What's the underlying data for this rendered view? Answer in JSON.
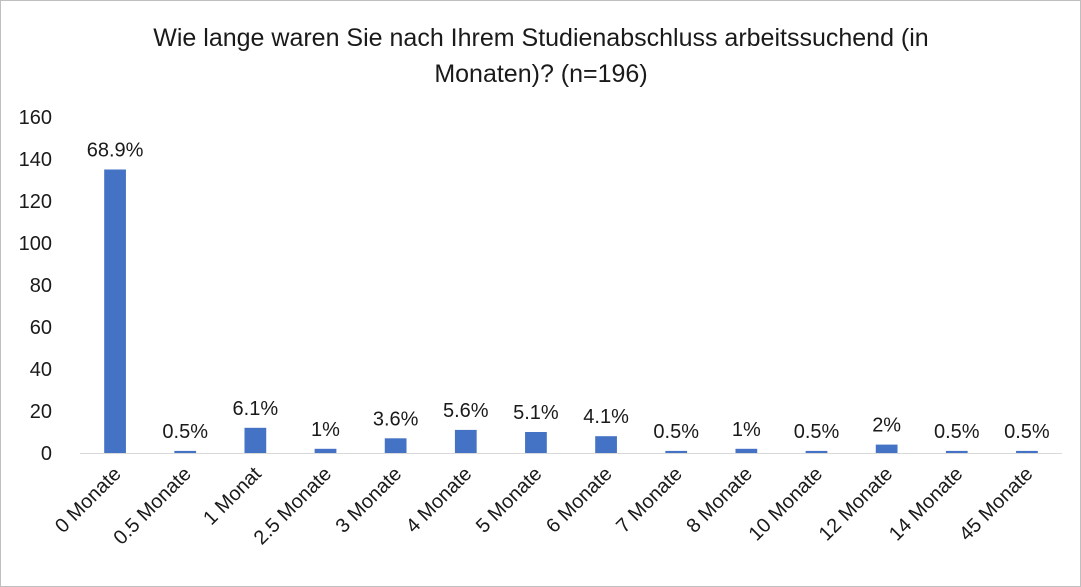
{
  "chart_data": {
    "type": "bar",
    "title_lines": [
      "Wie lange waren Sie nach Ihrem Studienabschluss arbeitssuchend (in",
      "Monaten)? (n=196)"
    ],
    "categories": [
      "0 Monate",
      "0.5 Monate",
      "1 Monat",
      "2.5 Monate",
      "3 Monate",
      "4 Monate",
      "5 Monate",
      "6 Monate",
      "7 Monate",
      "8 Monate",
      "10 Monate",
      "12 Monate",
      "14 Monate",
      "45 Monate"
    ],
    "values": [
      135,
      1,
      12,
      2,
      7,
      11,
      10,
      8,
      1,
      2,
      1,
      4,
      1,
      1
    ],
    "data_labels": [
      "68.9%",
      "0.5%",
      "6.1%",
      "1%",
      "3.6%",
      "5.6%",
      "5.1%",
      "4.1%",
      "0.5%",
      "1%",
      "0.5%",
      "2%",
      "0.5%",
      "0.5%"
    ],
    "yticks": [
      "0",
      "20",
      "40",
      "60",
      "80",
      "100",
      "120",
      "140",
      "160"
    ],
    "ylim": [
      0,
      160
    ],
    "bar_color": "#4472C4",
    "axis_color": "#d9d9d9",
    "grid": false,
    "legend": "none"
  }
}
